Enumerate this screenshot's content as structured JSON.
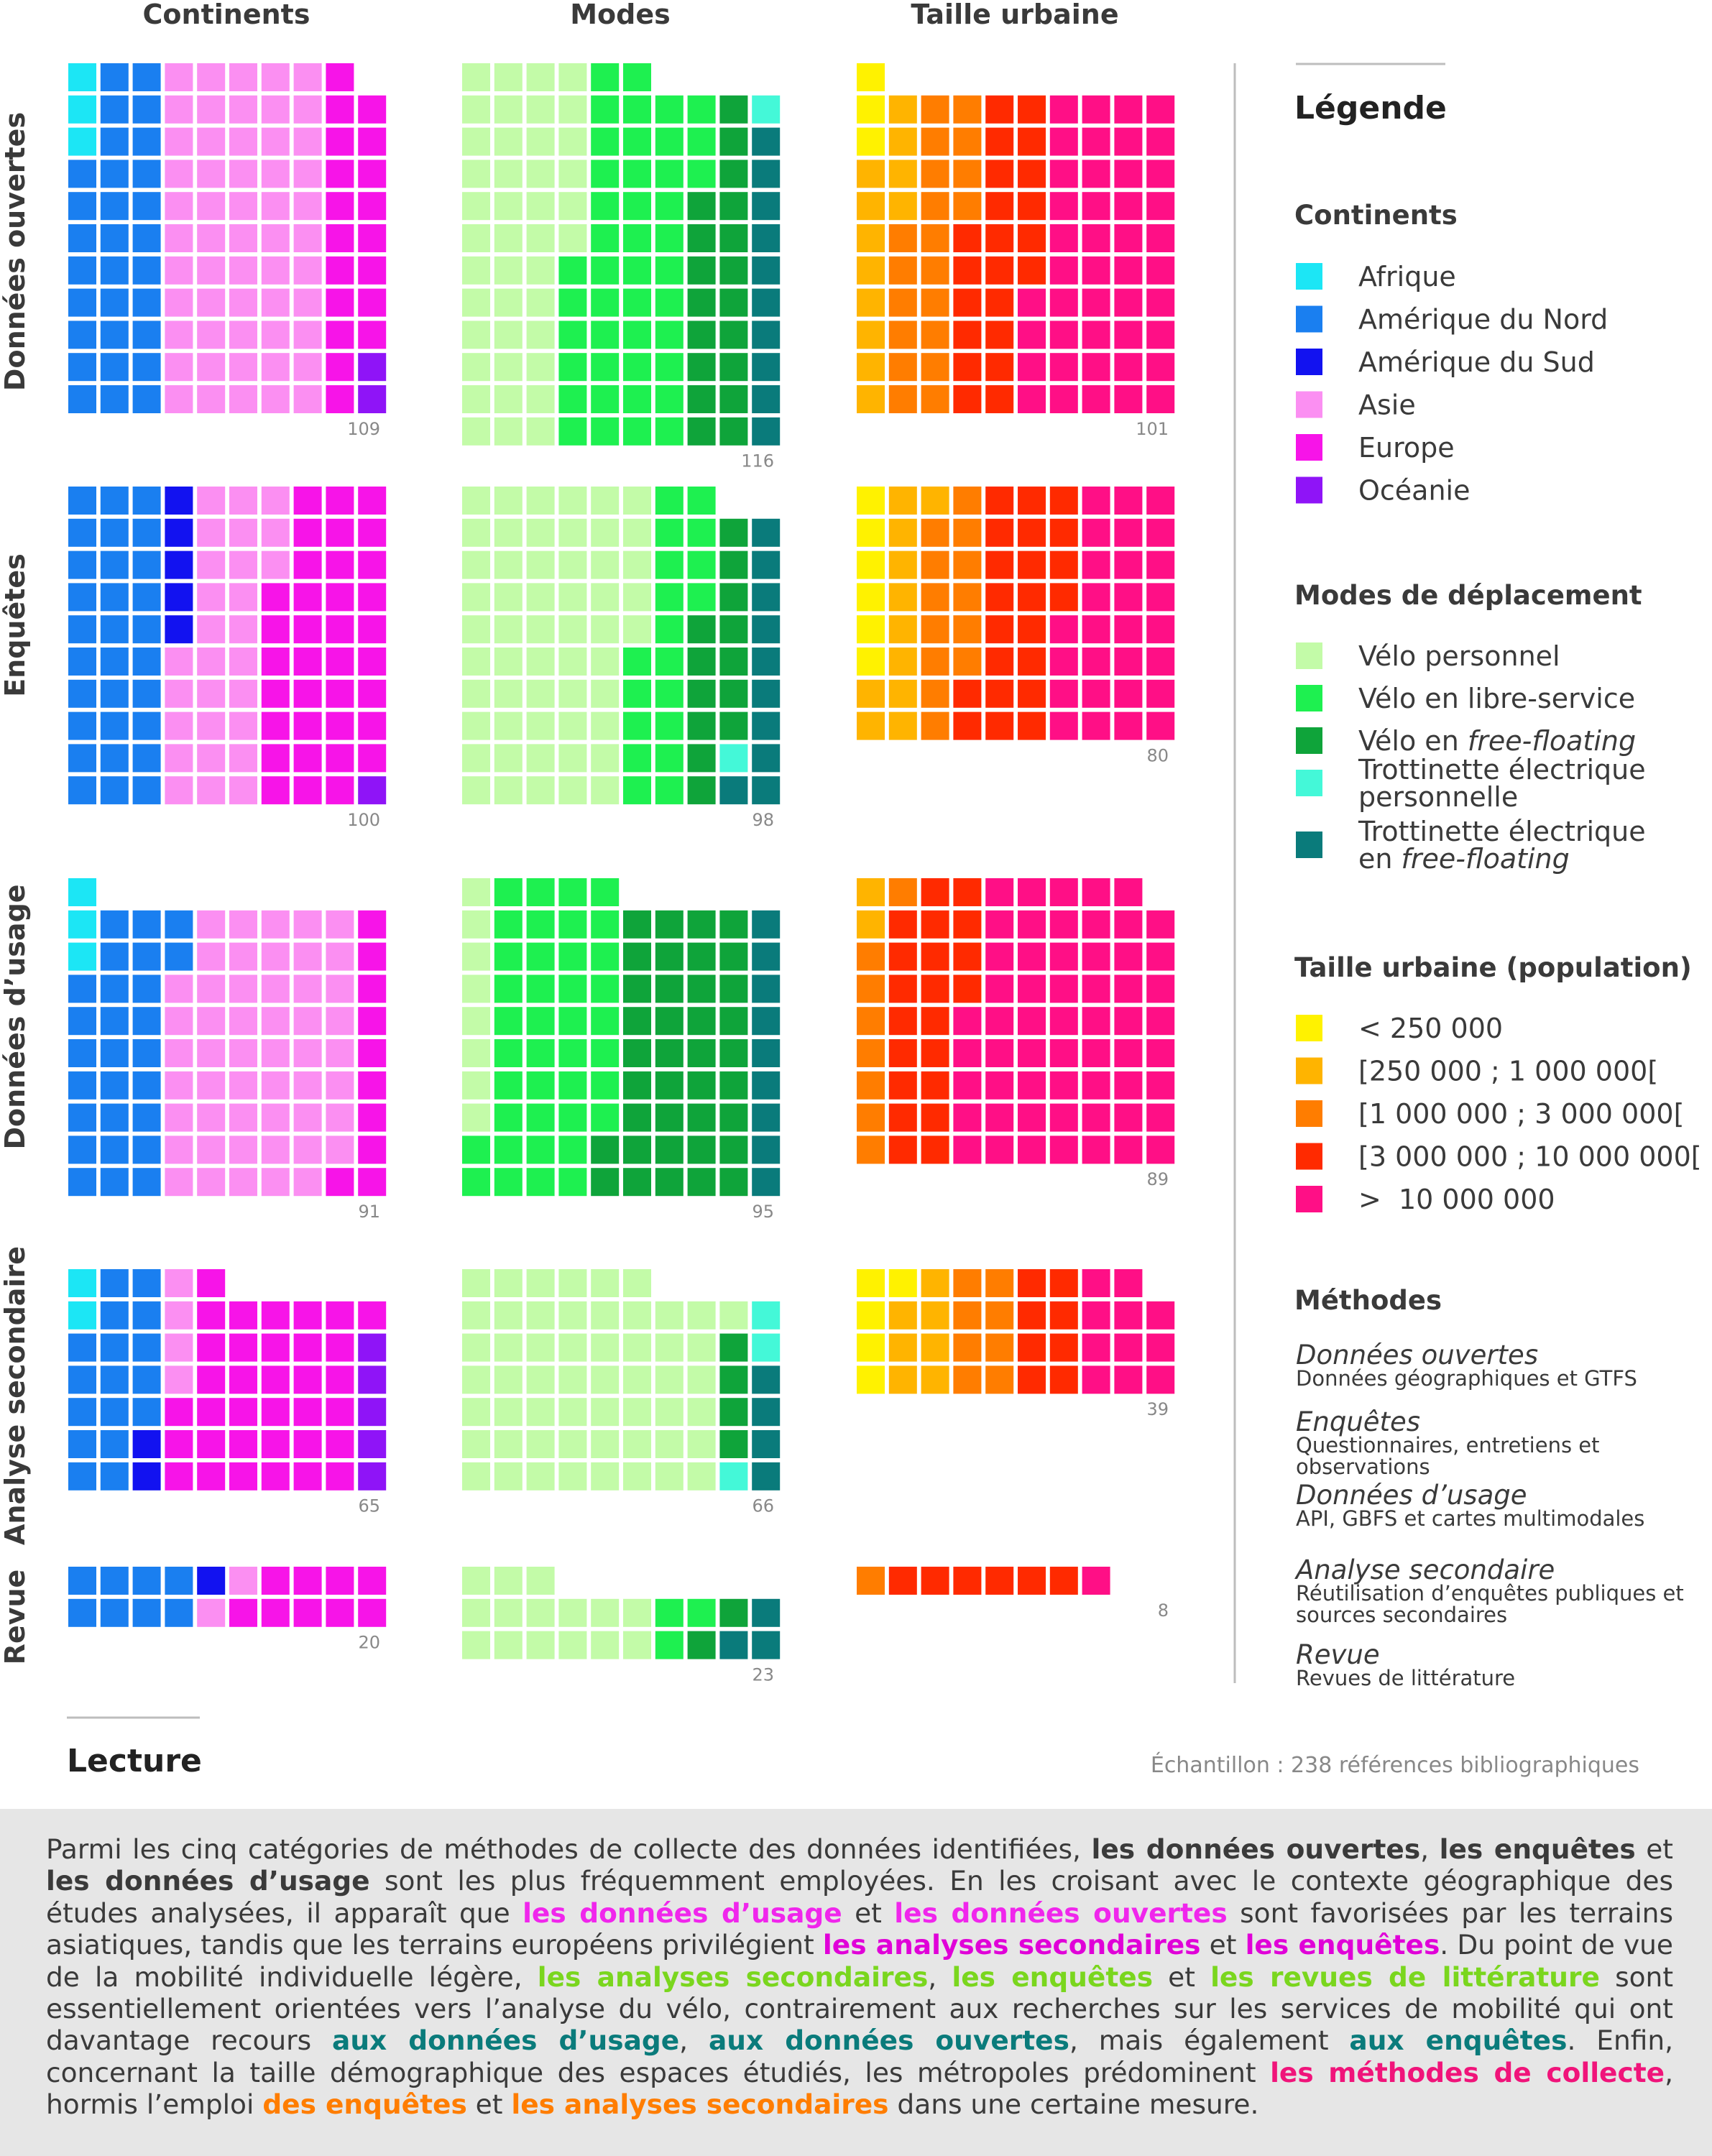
{
  "colors": {
    "Afrique": "#1ce6f5",
    "Amérique du Nord": "#1a7ff0",
    "Amérique du Sud": "#1212f0",
    "Asie": "#fb8ff2",
    "Europe": "#f714e8",
    "Océanie": "#8f14f7",
    "Vélo personnel": "#c3fba8",
    "Vélo en libre-service": "#1ef050",
    "Vélo en free-floating": "#0fa43a",
    "Trottinette électrique personnelle": "#44f8d8",
    "Trottinette électrique en free-floating": "#0a7b7b",
    "< 250 000": "#fff200",
    "[250 000 ; 1 000 000[": "#ffb400",
    "[1 000 000 ; 3 000 000[": "#ff7d00",
    "[3 000 000 ; 10 000 000[": "#ff2a00",
    "> 10 000 000": "#ff0f86"
  },
  "chart_data": {
    "type": "waffle",
    "columns": [
      "Continents",
      "Modes",
      "Taille urbaine"
    ],
    "rows": [
      "Données ouvertes",
      "Enquêtes",
      "Données d’usage",
      "Analyse secondaire",
      "Revue"
    ],
    "cells": [
      [
        {
          "total": 109,
          "parts": [
            [
              "Afrique",
              3
            ],
            [
              "Amérique du Nord",
              30
            ],
            [
              "Asie",
              55
            ],
            [
              "Europe",
              19
            ],
            [
              "Océanie",
              2
            ]
          ]
        },
        {
          "total": 116,
          "parts": [
            [
              "Vélo personnel",
              42
            ],
            [
              "Vélo en libre-service",
              44
            ],
            [
              "Vélo en free-floating",
              19
            ],
            [
              "Trottinette électrique personnelle",
              1
            ],
            [
              "Trottinette électrique en free-floating",
              10
            ]
          ]
        },
        {
          "total": 101,
          "parts": [
            [
              "< 250 000",
              3
            ],
            [
              "[250 000 ; 1 000 000[",
              12
            ],
            [
              "[1 000 000 ; 3 000 000[",
              20
            ],
            [
              "[3 000 000 ; 10 000 000[",
              22
            ],
            [
              "> 10 000 000",
              44
            ]
          ]
        }
      ],
      [
        {
          "total": 100,
          "parts": [
            [
              "Amérique du Nord",
              30
            ],
            [
              "Amérique du Sud",
              5
            ],
            [
              "Asie",
              28
            ],
            [
              "Europe",
              36
            ],
            [
              "Océanie",
              1
            ]
          ]
        },
        {
          "total": 98,
          "parts": [
            [
              "Vélo personnel",
              55
            ],
            [
              "Vélo en libre-service",
              19
            ],
            [
              "Vélo en free-floating",
              13
            ],
            [
              "Trottinette électrique personnelle",
              1
            ],
            [
              "Trottinette électrique en free-floating",
              10
            ]
          ]
        },
        {
          "total": 80,
          "parts": [
            [
              "< 250 000",
              6
            ],
            [
              "[250 000 ; 1 000 000[",
              11
            ],
            [
              "[1 000 000 ; 3 000 000[",
              13
            ],
            [
              "[3 000 000 ; 10 000 000[",
              22
            ],
            [
              "> 10 000 000",
              28
            ]
          ]
        }
      ],
      [
        {
          "total": 91,
          "parts": [
            [
              "Afrique",
              3
            ],
            [
              "Amérique du Nord",
              27
            ],
            [
              "Asie",
              51
            ],
            [
              "Europe",
              10
            ]
          ]
        },
        {
          "total": 95,
          "parts": [
            [
              "Vélo personnel",
              8
            ],
            [
              "Vélo en libre-service",
              40
            ],
            [
              "Vélo en free-floating",
              38
            ],
            [
              "Trottinette électrique en free-floating",
              9
            ]
          ]
        },
        {
          "total": 89,
          "parts": [
            [
              "[250 000 ; 1 000 000[",
              2
            ],
            [
              "[1 000 000 ; 3 000 000[",
              8
            ],
            [
              "[3 000 000 ; 10 000 000[",
              21
            ],
            [
              "> 10 000 000",
              58
            ]
          ]
        }
      ],
      [
        {
          "total": 65,
          "parts": [
            [
              "Afrique",
              2
            ],
            [
              "Amérique du Nord",
              17
            ],
            [
              "Amérique du Sud",
              2
            ],
            [
              "Asie",
              4
            ],
            [
              "Europe",
              35
            ],
            [
              "Océanie",
              5
            ]
          ]
        },
        {
          "total": 66,
          "parts": [
            [
              "Vélo personnel",
              55
            ],
            [
              "Vélo en free-floating",
              4
            ],
            [
              "Trottinette électrique personnelle",
              3
            ],
            [
              "Trottinette électrique en free-floating",
              4
            ]
          ]
        },
        {
          "total": 39,
          "parts": [
            [
              "< 250 000",
              5
            ],
            [
              "[250 000 ; 1 000 000[",
              7
            ],
            [
              "[1 000 000 ; 3 000 000[",
              8
            ],
            [
              "[3 000 000 ; 10 000 000[",
              8
            ],
            [
              "> 10 000 000",
              11
            ]
          ]
        }
      ],
      [
        {
          "total": 20,
          "parts": [
            [
              "Amérique du Nord",
              8
            ],
            [
              "Amérique du Sud",
              1
            ],
            [
              "Asie",
              2
            ],
            [
              "Europe",
              9
            ]
          ]
        },
        {
          "total": 23,
          "parts": [
            [
              "Vélo personnel",
              15
            ],
            [
              "Vélo en libre-service",
              3
            ],
            [
              "Vélo en free-floating",
              2
            ],
            [
              "Trottinette électrique en free-floating",
              3
            ]
          ]
        },
        {
          "total": 8,
          "parts": [
            [
              "[1 000 000 ; 3 000 000[",
              1
            ],
            [
              "[3 000 000 ; 10 000 000[",
              6
            ],
            [
              "> 10 000 000",
              1
            ]
          ]
        }
      ]
    ]
  },
  "legend": {
    "title": "Légende",
    "continents_title": "Continents",
    "continents": [
      "Afrique",
      "Amérique du Nord",
      "Amérique du Sud",
      "Asie",
      "Europe",
      "Océanie"
    ],
    "modes_title": "Modes de déplacement",
    "modes": [
      {
        "key": "Vélo personnel",
        "line1": "Vélo personnel"
      },
      {
        "key": "Vélo en libre-service",
        "line1": "Vélo en libre-service"
      },
      {
        "key": "Vélo en free-floating",
        "line1": "Vélo en ",
        "line1_italic": "free-floating"
      },
      {
        "key": "Trottinette électrique personnelle",
        "line1": "Trottinette électrique",
        "line2": "personnelle"
      },
      {
        "key": "Trottinette électrique en free-floating",
        "line1": "Trottinette électrique",
        "line2": "en ",
        "line2_italic": "free-floating"
      }
    ],
    "taille_title": "Taille urbaine (population)",
    "taille": [
      {
        "key": "< 250 000",
        "label": "< 250 000"
      },
      {
        "key": "[250 000 ; 1 000 000[",
        "label": "[250 000 ; 1 000 000["
      },
      {
        "key": "[1 000 000 ; 3 000 000[",
        "label": "[1 000 000 ; 3 000 000["
      },
      {
        "key": "[3 000 000 ; 10 000 000[",
        "label": "[3 000 000 ; 10 000 000["
      },
      {
        "key": "> 10 000 000",
        "label": ">  10 000 000"
      }
    ],
    "methodes_title": "Méthodes",
    "methodes": [
      {
        "name": "Données ouvertes",
        "desc": [
          "Données géographiques et GTFS"
        ]
      },
      {
        "name": "Enquêtes",
        "desc": [
          "Questionnaires, entretiens et",
          "observations"
        ]
      },
      {
        "name": "Données d’usage",
        "desc": [
          "API, GBFS et cartes multimodales"
        ]
      },
      {
        "name": "Analyse secondaire",
        "desc": [
          "Réutilisation d’enquêtes publiques et",
          "sources secondaires"
        ]
      },
      {
        "name": "Revue",
        "desc": [
          "Revues de littérature"
        ]
      }
    ]
  },
  "lecture": {
    "title": "Lecture",
    "sample": "Échantillon : 238 références bibliographiques",
    "paragraph": [
      {
        "t": "Parmi les cinq catégories de méthodes de collecte des données identifiées, "
      },
      {
        "t": "les données ouvertes",
        "b": true
      },
      {
        "t": ", "
      },
      {
        "t": "les enquêtes",
        "b": true
      },
      {
        "t": " et "
      },
      {
        "t": "les données d’usage",
        "b": true
      },
      {
        "t": " sont les plus fréquemment employées. En les croisant avec le contexte géographique des études analysées, il apparaît que "
      },
      {
        "t": "les données d’usage",
        "b": true,
        "c": "#f026ec"
      },
      {
        "t": " et "
      },
      {
        "t": "les données ouvertes",
        "b": true,
        "c": "#f026ec"
      },
      {
        "t": " sont favorisées par les terrains asiatiques, tandis que les terrains européens privilégient "
      },
      {
        "t": "les analyses secondaires",
        "b": true,
        "c": "#e000d8"
      },
      {
        "t": " et "
      },
      {
        "t": "les enquêtes",
        "b": true,
        "c": "#e000d8"
      },
      {
        "t": ". Du point de vue de la mobilité individuelle légère, "
      },
      {
        "t": "les analyses secondaires",
        "b": true,
        "c": "#7ad61e"
      },
      {
        "t": ", "
      },
      {
        "t": "les enquêtes",
        "b": true,
        "c": "#7ad61e"
      },
      {
        "t": " et "
      },
      {
        "t": "les revues de littérature",
        "b": true,
        "c": "#7ad61e"
      },
      {
        "t": " sont essentiellement orientées vers l’analyse du vélo, contrairement aux recherches sur les services de mobilité qui ont davantage recours "
      },
      {
        "t": "aux données d’usage",
        "b": true,
        "c": "#0a7b7b"
      },
      {
        "t": ", "
      },
      {
        "t": "aux données ouvertes",
        "b": true,
        "c": "#0a7b7b"
      },
      {
        "t": ", mais également "
      },
      {
        "t": "aux enquêtes",
        "b": true,
        "c": "#0a7b7b"
      },
      {
        "t": ". Enfin, concernant la taille démographique des espaces étudiés, les métropoles prédominent "
      },
      {
        "t": "les méthodes de collecte",
        "b": true,
        "c": "#f0147a"
      },
      {
        "t": ", hormis l’emploi "
      },
      {
        "t": "des enquêtes",
        "b": true,
        "c": "#ff7d00"
      },
      {
        "t": " et "
      },
      {
        "t": "les analyses secondaires",
        "b": true,
        "c": "#ff7d00"
      },
      {
        "t": " dans une certaine mesure."
      }
    ]
  }
}
